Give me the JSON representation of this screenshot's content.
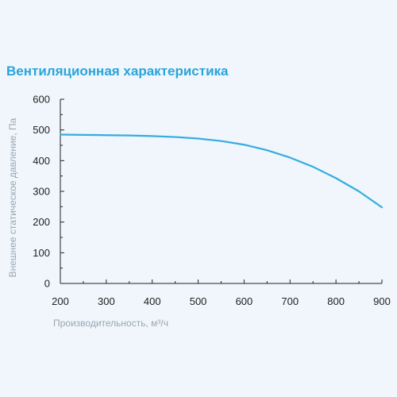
{
  "chart_data": {
    "type": "line",
    "title": "Вентиляционная характеристика",
    "xlabel": "Производительность, м³/ч",
    "ylabel": "Внешнее статическое давление, Па",
    "xlim": [
      200,
      900
    ],
    "ylim": [
      0,
      600
    ],
    "x_ticks": [
      200,
      300,
      400,
      500,
      600,
      700,
      800,
      900
    ],
    "y_ticks": [
      0,
      100,
      200,
      300,
      400,
      500,
      600
    ],
    "grid": false,
    "series": [
      {
        "color": "#35ace2",
        "x": [
          200,
          250,
          300,
          350,
          400,
          450,
          500,
          550,
          600,
          650,
          700,
          750,
          800,
          850,
          900
        ],
        "y": [
          485,
          484,
          483,
          482,
          480,
          477,
          472,
          464,
          452,
          434,
          410,
          380,
          343,
          300,
          248
        ]
      }
    ]
  }
}
